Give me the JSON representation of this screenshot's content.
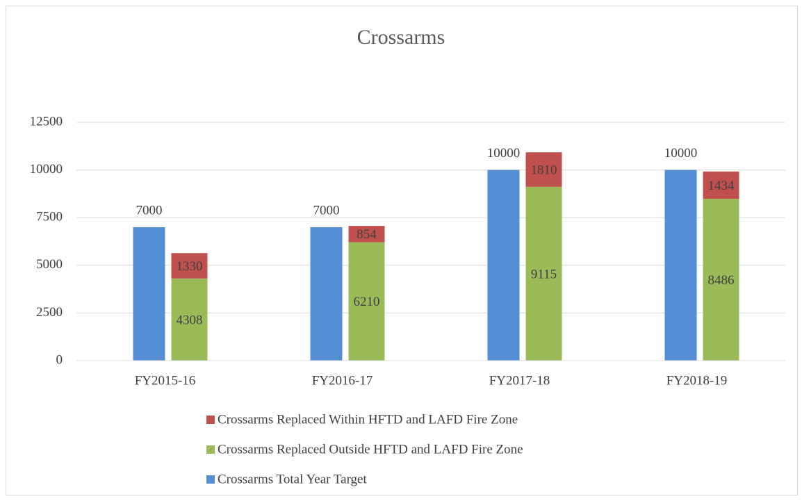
{
  "chart_data": {
    "type": "bar",
    "title": "Crossarms",
    "categories": [
      "FY2015-16",
      "FY2016-17",
      "FY2017-18",
      "FY2018-19"
    ],
    "series": [
      {
        "name": "Crossarms Total Year Target",
        "color": "#558ed5",
        "stacked": false,
        "values": [
          7000,
          7000,
          10000,
          10000
        ]
      },
      {
        "name": "Crossarms Replaced Outside HFTD and LAFD Fire Zone",
        "color": "#9bbb59",
        "stacked": true,
        "values": [
          4308,
          6210,
          9115,
          8486
        ]
      },
      {
        "name": "Crossarms Replaced Within HFTD and LAFD Fire Zone",
        "color": "#c0504d",
        "stacked": true,
        "values": [
          1330,
          854,
          1810,
          1434
        ]
      }
    ],
    "ylim": [
      0,
      12500
    ],
    "yticks": [
      0,
      2500,
      5000,
      7500,
      10000,
      12500
    ],
    "grid": true,
    "legend": "bottom"
  }
}
